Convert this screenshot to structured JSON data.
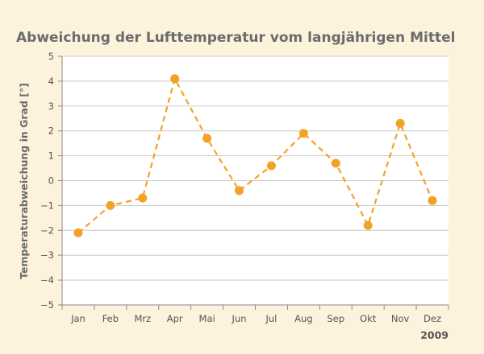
{
  "colors": {
    "background": "#fdf3dc",
    "plot_background": "#ffffff",
    "grid": "#c8c8c8",
    "axis": "#8a8a8a",
    "series": "#f3a227",
    "text": "#6b6b6b"
  },
  "chart_data": {
    "type": "line",
    "title": "Abweichung der Lufttemperatur vom langjährigen Mittel",
    "ylabel": "Temperaturabweichung in Grad [°]",
    "xlabel": "",
    "x_caption": "2009",
    "categories": [
      "Jan",
      "Feb",
      "Mrz",
      "Apr",
      "Mai",
      "Jun",
      "Jul",
      "Aug",
      "Sep",
      "Okt",
      "Nov",
      "Dez"
    ],
    "y_ticks": [
      "5",
      "4",
      "3",
      "2",
      "1",
      "0",
      "−1",
      "−2",
      "−3",
      "−4",
      "−5"
    ],
    "ylim": [
      -5,
      5
    ],
    "grid": true,
    "line_style": "dashed",
    "marker": "circle",
    "series": [
      {
        "values": [
          -2.1,
          -1.0,
          -0.7,
          4.1,
          1.7,
          -0.4,
          0.6,
          1.9,
          0.7,
          -1.8,
          2.3,
          -0.8
        ]
      }
    ]
  }
}
